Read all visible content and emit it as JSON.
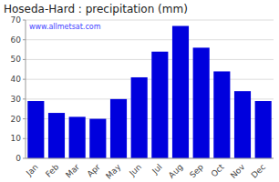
{
  "chart_data": {
    "type": "bar",
    "title": "Hoseda-Hard : precipitation (mm)",
    "categories": [
      "Jan",
      "Feb",
      "Mar",
      "Apr",
      "May",
      "Jun",
      "Jul",
      "Aug",
      "Sep",
      "Oct",
      "Nov",
      "Dec"
    ],
    "values": [
      29,
      23,
      21,
      20,
      30,
      41,
      54,
      67,
      56,
      44,
      34,
      29
    ],
    "color": "#0000dd",
    "ylim": [
      0,
      70
    ],
    "yticks": [
      0,
      10,
      20,
      30,
      40,
      50,
      60,
      70
    ],
    "grid": true,
    "annotations": [
      "www.allmetsat.com"
    ]
  }
}
